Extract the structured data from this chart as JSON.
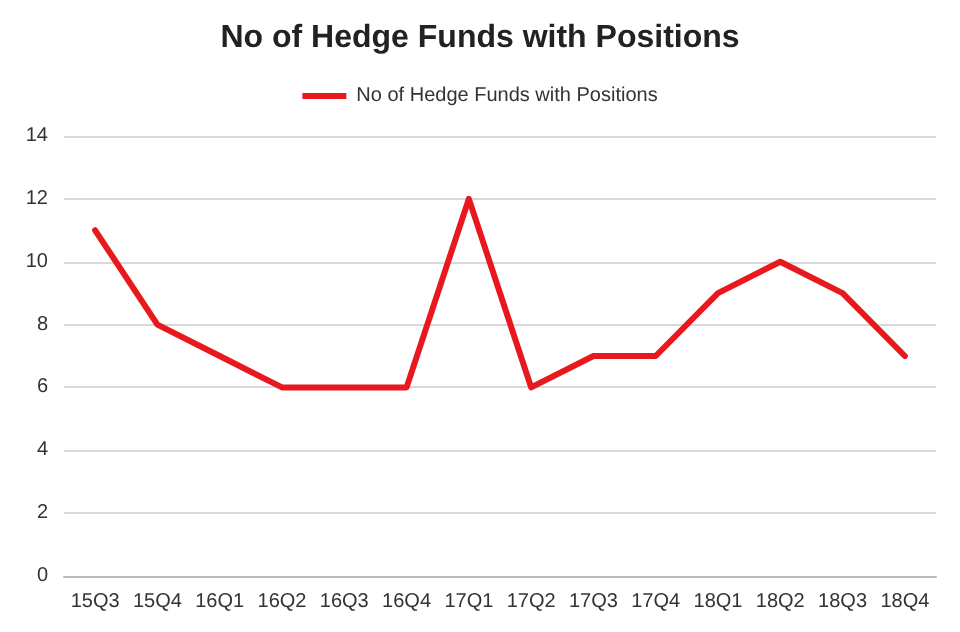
{
  "chart_data": {
    "type": "line",
    "title": "No of Hedge Funds with Positions",
    "categories": [
      "15Q3",
      "15Q4",
      "16Q1",
      "16Q2",
      "16Q3",
      "16Q4",
      "17Q1",
      "17Q2",
      "17Q3",
      "17Q4",
      "18Q1",
      "18Q2",
      "18Q3",
      "18Q4"
    ],
    "series": [
      {
        "name": "No of Hedge Funds with Positions",
        "color": "#e8191e",
        "values": [
          11,
          8,
          7,
          6,
          6,
          6,
          12,
          6,
          7,
          7,
          9,
          10,
          9,
          7
        ]
      }
    ],
    "ylim": [
      0,
      14
    ],
    "yticks": [
      0,
      2,
      4,
      6,
      8,
      10,
      12,
      14
    ],
    "grid": "y",
    "legend": "top",
    "marker": "none",
    "line_style": "solid"
  }
}
